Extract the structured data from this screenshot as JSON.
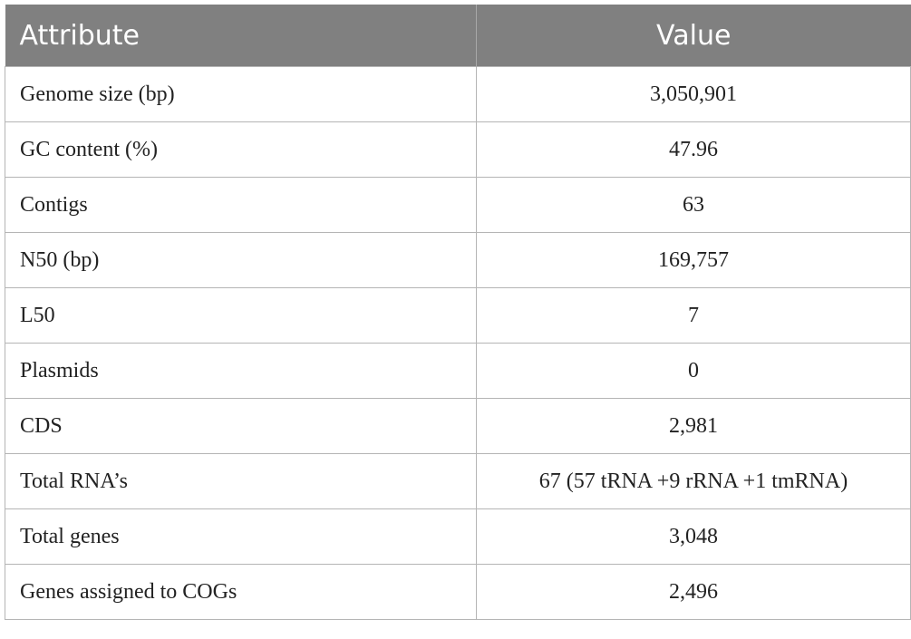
{
  "table": {
    "header": [
      "Attribute",
      "Value"
    ],
    "rows": [
      [
        "Genome size (bp)",
        "3,050,901"
      ],
      [
        "GC content (%)",
        "47.96"
      ],
      [
        "Contigs",
        "63"
      ],
      [
        "N50 (bp)",
        "169,757"
      ],
      [
        "L50",
        "7"
      ],
      [
        "Plasmids",
        "0"
      ],
      [
        "CDS",
        "2,981"
      ],
      [
        "Total RNA’s",
        "67 (57 tRNA +9 rRNA +1 tmRNA)"
      ],
      [
        "Total genes",
        "3,048"
      ],
      [
        "Genes assigned to COGs",
        "2,496"
      ]
    ]
  }
}
